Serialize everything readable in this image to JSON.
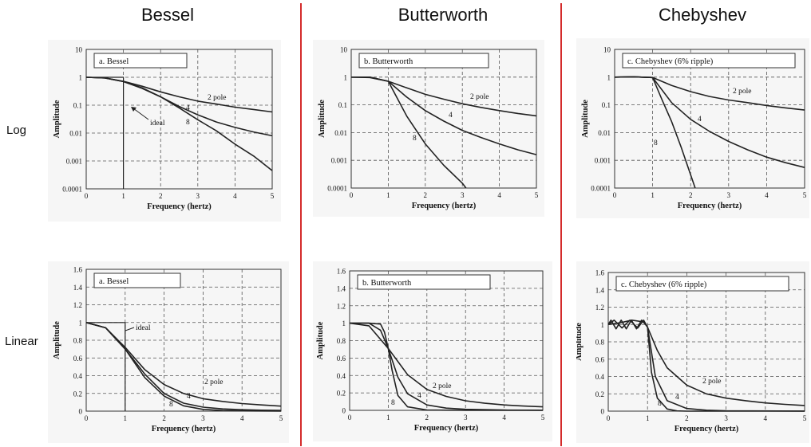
{
  "columns": [
    "Bessel",
    "Butterworth",
    "Chebyshev"
  ],
  "rows": [
    "Log",
    "Linear"
  ],
  "colors": {
    "divider": "#d42b2b",
    "curve": "#222222",
    "grid": "#555555",
    "panel_bg": "#f6f6f6"
  },
  "chart_data": [
    {
      "type": "line",
      "scale": "log",
      "title": "a.  Bessel",
      "xlabel": "Frequency (hertz)",
      "ylabel": "Amplitude",
      "xlim": [
        0,
        5
      ],
      "ylim": [
        0.0001,
        10
      ],
      "xticks": [
        "0",
        "1",
        "2",
        "3",
        "4",
        "5"
      ],
      "yticks": [
        "0.0001",
        "0.001",
        "0.01",
        "0.1",
        "1",
        "10"
      ],
      "grid": true,
      "series": [
        {
          "name": "2 pole",
          "points": [
            [
              0,
              1
            ],
            [
              0.5,
              0.95
            ],
            [
              1,
              0.72
            ],
            [
              1.5,
              0.48
            ],
            [
              2,
              0.3
            ],
            [
              2.5,
              0.2
            ],
            [
              3,
              0.14
            ],
            [
              3.5,
              0.11
            ],
            [
              4,
              0.085
            ],
            [
              4.5,
              0.07
            ],
            [
              5,
              0.057
            ]
          ]
        },
        {
          "name": "4",
          "points": [
            [
              0,
              1
            ],
            [
              0.5,
              0.95
            ],
            [
              1,
              0.7
            ],
            [
              1.5,
              0.42
            ],
            [
              2,
              0.2
            ],
            [
              2.5,
              0.09
            ],
            [
              3,
              0.045
            ],
            [
              3.5,
              0.025
            ],
            [
              4,
              0.016
            ],
            [
              4.5,
              0.011
            ],
            [
              5,
              0.008
            ]
          ]
        },
        {
          "name": "8",
          "points": [
            [
              0,
              1
            ],
            [
              0.5,
              0.95
            ],
            [
              1,
              0.7
            ],
            [
              1.5,
              0.4
            ],
            [
              2,
              0.2
            ],
            [
              2.5,
              0.08
            ],
            [
              3,
              0.03
            ],
            [
              3.5,
              0.012
            ],
            [
              4,
              0.004
            ],
            [
              4.5,
              0.0015
            ],
            [
              5,
              0.00045
            ]
          ]
        },
        {
          "name": "ideal",
          "points": [
            [
              0,
              1
            ],
            [
              1,
              1
            ],
            [
              1,
              0.0001
            ]
          ]
        }
      ],
      "annotations": [
        "2 pole",
        "4",
        "8",
        "ideal"
      ]
    },
    {
      "type": "line",
      "scale": "log",
      "title": "b.  Butterworth",
      "xlabel": "Frequency (hertz)",
      "ylabel": "Amplitude",
      "xlim": [
        0,
        5
      ],
      "ylim": [
        0.0001,
        10
      ],
      "xticks": [
        "0",
        "1",
        "2",
        "3",
        "4",
        "5"
      ],
      "yticks": [
        "0.0001",
        "0.001",
        "0.01",
        "0.1",
        "1",
        "10"
      ],
      "grid": true,
      "series": [
        {
          "name": "2 pole",
          "points": [
            [
              0,
              1
            ],
            [
              0.5,
              0.97
            ],
            [
              1,
              0.71
            ],
            [
              1.5,
              0.41
            ],
            [
              2,
              0.24
            ],
            [
              2.5,
              0.16
            ],
            [
              3,
              0.11
            ],
            [
              3.5,
              0.081
            ],
            [
              4,
              0.062
            ],
            [
              4.5,
              0.049
            ],
            [
              5,
              0.04
            ]
          ]
        },
        {
          "name": "4",
          "points": [
            [
              0,
              1
            ],
            [
              0.5,
              1
            ],
            [
              1,
              0.71
            ],
            [
              1.5,
              0.19
            ],
            [
              2,
              0.062
            ],
            [
              2.5,
              0.026
            ],
            [
              3,
              0.012
            ],
            [
              3.5,
              0.0067
            ],
            [
              4,
              0.0039
            ],
            [
              4.5,
              0.0024
            ],
            [
              5,
              0.0016
            ]
          ]
        },
        {
          "name": "8",
          "points": [
            [
              0,
              1
            ],
            [
              0.5,
              1
            ],
            [
              1,
              0.71
            ],
            [
              1.5,
              0.039
            ],
            [
              2,
              0.0039
            ],
            [
              2.5,
              0.00066
            ],
            [
              3,
              0.00015
            ],
            [
              3.1,
              0.0001
            ]
          ]
        }
      ],
      "annotations": [
        "2 pole",
        "4",
        "8"
      ]
    },
    {
      "type": "line",
      "scale": "log",
      "title": "c.  Chebyshev (6% ripple)",
      "xlabel": "Frequency (hertz)",
      "ylabel": "Amplitude",
      "xlim": [
        0,
        5
      ],
      "ylim": [
        0.0001,
        10
      ],
      "xticks": [
        "0",
        "1",
        "2",
        "3",
        "4",
        "5"
      ],
      "yticks": [
        "0.0001",
        "0.001",
        "0.01",
        "0.1",
        "1",
        "10"
      ],
      "grid": true,
      "series": [
        {
          "name": "2 pole",
          "points": [
            [
              0,
              1
            ],
            [
              0.5,
              1.03
            ],
            [
              1,
              0.97
            ],
            [
              1.5,
              0.5
            ],
            [
              2,
              0.3
            ],
            [
              2.5,
              0.2
            ],
            [
              3,
              0.15
            ],
            [
              3.5,
              0.12
            ],
            [
              4,
              0.095
            ],
            [
              4.5,
              0.078
            ],
            [
              5,
              0.065
            ]
          ]
        },
        {
          "name": "4",
          "points": [
            [
              0,
              1
            ],
            [
              0.5,
              1.03
            ],
            [
              1,
              0.97
            ],
            [
              1.5,
              0.12
            ],
            [
              2,
              0.03
            ],
            [
              2.5,
              0.011
            ],
            [
              3,
              0.0048
            ],
            [
              3.5,
              0.0024
            ],
            [
              4,
              0.0013
            ],
            [
              4.5,
              0.00082
            ],
            [
              5,
              0.00055
            ]
          ]
        },
        {
          "name": "8",
          "points": [
            [
              0,
              1
            ],
            [
              0.5,
              1.03
            ],
            [
              1,
              0.97
            ],
            [
              1.25,
              0.15
            ],
            [
              1.5,
              0.025
            ],
            [
              1.75,
              0.003
            ],
            [
              2,
              0.0003
            ],
            [
              2.12,
              0.0001
            ]
          ]
        }
      ],
      "annotations": [
        "2 pole",
        "4",
        "8"
      ]
    },
    {
      "type": "line",
      "scale": "linear",
      "title": "a.  Bessel",
      "xlabel": "Frequency (hertz)",
      "ylabel": "Amplitude",
      "xlim": [
        0,
        5
      ],
      "ylim": [
        0,
        1.6
      ],
      "xticks": [
        "0",
        "1",
        "2",
        "3",
        "4",
        "5"
      ],
      "yticks": [
        "0",
        "0.2",
        "0.4",
        "0.6",
        "0.8",
        "1",
        "1.2",
        "1.4",
        "1.6"
      ],
      "grid": true,
      "series": [
        {
          "name": "2 pole",
          "points": [
            [
              0,
              1
            ],
            [
              0.5,
              0.94
            ],
            [
              1,
              0.72
            ],
            [
              1.5,
              0.47
            ],
            [
              2,
              0.3
            ],
            [
              2.5,
              0.2
            ],
            [
              3,
              0.14
            ],
            [
              3.5,
              0.11
            ],
            [
              4,
              0.085
            ],
            [
              4.5,
              0.07
            ],
            [
              5,
              0.057
            ]
          ]
        },
        {
          "name": "4",
          "points": [
            [
              0,
              1
            ],
            [
              0.5,
              0.94
            ],
            [
              1,
              0.7
            ],
            [
              1.5,
              0.42
            ],
            [
              2,
              0.2
            ],
            [
              2.5,
              0.09
            ],
            [
              3,
              0.045
            ],
            [
              3.5,
              0.025
            ],
            [
              4,
              0.016
            ],
            [
              4.5,
              0.011
            ],
            [
              5,
              0.008
            ]
          ]
        },
        {
          "name": "8",
          "points": [
            [
              0,
              1
            ],
            [
              0.5,
              0.94
            ],
            [
              1,
              0.7
            ],
            [
              1.5,
              0.38
            ],
            [
              2,
              0.17
            ],
            [
              2.5,
              0.06
            ],
            [
              3,
              0.02
            ],
            [
              3.5,
              0.007
            ],
            [
              4,
              0.003
            ],
            [
              5,
              0.0005
            ]
          ]
        },
        {
          "name": "ideal",
          "points": [
            [
              0,
              1
            ],
            [
              1,
              1
            ],
            [
              1,
              0
            ]
          ]
        }
      ],
      "annotations": [
        "2 pole",
        "4",
        "8",
        "ideal"
      ]
    },
    {
      "type": "line",
      "scale": "linear",
      "title": "b.  Butterworth",
      "xlabel": "Frequency (hertz)",
      "ylabel": "Amplitude",
      "xlim": [
        0,
        5
      ],
      "ylim": [
        0,
        1.6
      ],
      "xticks": [
        "0",
        "1",
        "2",
        "3",
        "4",
        "5"
      ],
      "yticks": [
        "0",
        "0.2",
        "0.4",
        "0.6",
        "0.8",
        "1",
        "1.2",
        "1.4",
        "1.6"
      ],
      "grid": true,
      "series": [
        {
          "name": "2 pole",
          "points": [
            [
              0,
              1
            ],
            [
              0.5,
              0.97
            ],
            [
              1,
              0.71
            ],
            [
              1.5,
              0.41
            ],
            [
              2,
              0.24
            ],
            [
              2.5,
              0.16
            ],
            [
              3,
              0.11
            ],
            [
              3.5,
              0.081
            ],
            [
              4,
              0.062
            ],
            [
              4.5,
              0.049
            ],
            [
              5,
              0.04
            ]
          ]
        },
        {
          "name": "4",
          "points": [
            [
              0,
              1
            ],
            [
              0.5,
              1
            ],
            [
              0.8,
              0.92
            ],
            [
              1,
              0.71
            ],
            [
              1.25,
              0.38
            ],
            [
              1.5,
              0.19
            ],
            [
              2,
              0.062
            ],
            [
              2.5,
              0.026
            ],
            [
              3,
              0.012
            ],
            [
              4,
              0.004
            ],
            [
              5,
              0.0016
            ]
          ]
        },
        {
          "name": "8",
          "points": [
            [
              0,
              1
            ],
            [
              0.5,
              1
            ],
            [
              0.8,
              0.99
            ],
            [
              0.9,
              0.9
            ],
            [
              1,
              0.71
            ],
            [
              1.1,
              0.46
            ],
            [
              1.25,
              0.17
            ],
            [
              1.5,
              0.04
            ],
            [
              2,
              0.004
            ],
            [
              3,
              0.0002
            ],
            [
              5,
              0
            ]
          ]
        }
      ],
      "annotations": [
        "2 pole",
        "4",
        "8"
      ]
    },
    {
      "type": "line",
      "scale": "linear",
      "title": "c.  Chebyshev (6% ripple)",
      "xlabel": "Frequency (hertz)",
      "ylabel": "Amplitude",
      "xlim": [
        0,
        5
      ],
      "ylim": [
        0,
        1.6
      ],
      "xticks": [
        "0",
        "1",
        "2",
        "3",
        "4",
        "5"
      ],
      "yticks": [
        "0",
        "0.2",
        "0.4",
        "0.6",
        "0.8",
        "1",
        "1.2",
        "1.4",
        "1.6"
      ],
      "grid": true,
      "series": [
        {
          "name": "2 pole",
          "points": [
            [
              0,
              1
            ],
            [
              0.3,
              1.02
            ],
            [
              0.6,
              1.05
            ],
            [
              0.9,
              1.03
            ],
            [
              1,
              0.97
            ],
            [
              1.25,
              0.7
            ],
            [
              1.5,
              0.5
            ],
            [
              2,
              0.3
            ],
            [
              2.5,
              0.2
            ],
            [
              3,
              0.15
            ],
            [
              3.5,
              0.12
            ],
            [
              4,
              0.095
            ],
            [
              4.5,
              0.078
            ],
            [
              5,
              0.065
            ]
          ]
        },
        {
          "name": "4",
          "points": [
            [
              0,
              1
            ],
            [
              0.15,
              1.05
            ],
            [
              0.35,
              0.96
            ],
            [
              0.55,
              1.05
            ],
            [
              0.75,
              0.96
            ],
            [
              0.9,
              1.05
            ],
            [
              1,
              0.97
            ],
            [
              1.2,
              0.4
            ],
            [
              1.5,
              0.12
            ],
            [
              2,
              0.03
            ],
            [
              2.5,
              0.011
            ],
            [
              3,
              0.005
            ],
            [
              5,
              0.0006
            ]
          ]
        },
        {
          "name": "8",
          "points": [
            [
              0,
              1
            ],
            [
              0.07,
              1.05
            ],
            [
              0.2,
              0.95
            ],
            [
              0.33,
              1.05
            ],
            [
              0.46,
              0.95
            ],
            [
              0.59,
              1.05
            ],
            [
              0.72,
              0.95
            ],
            [
              0.85,
              1.05
            ],
            [
              0.95,
              1.0
            ],
            [
              1,
              0.97
            ],
            [
              1.1,
              0.45
            ],
            [
              1.25,
              0.15
            ],
            [
              1.5,
              0.025
            ],
            [
              1.75,
              0.003
            ],
            [
              2,
              0.0003
            ],
            [
              5,
              0
            ]
          ]
        }
      ],
      "annotations": [
        "2 pole",
        "4",
        "8"
      ]
    }
  ]
}
